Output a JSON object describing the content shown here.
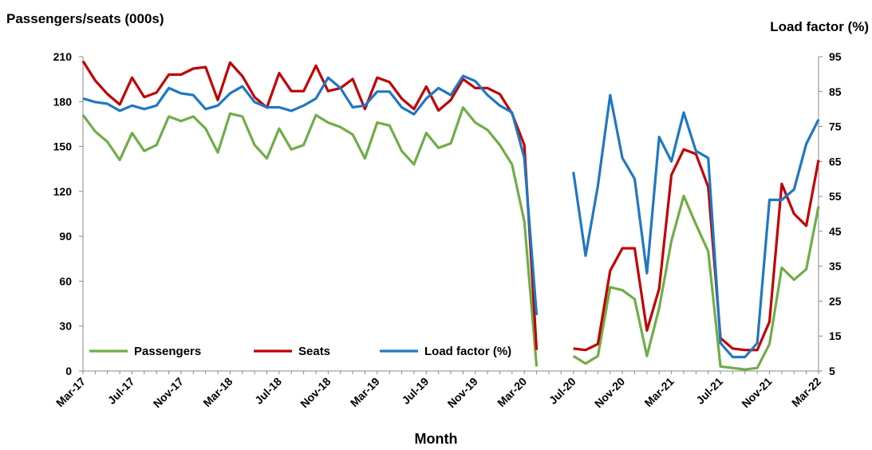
{
  "chart_data": {
    "type": "line",
    "ylabel": "Passengers/seats (000s)",
    "y2label": "Load factor (%)",
    "xlabel": "Month",
    "ylim": [
      0,
      210
    ],
    "y2lim": [
      5,
      95
    ],
    "yticks": [
      0,
      30,
      60,
      90,
      120,
      150,
      180,
      210
    ],
    "y2ticks": [
      5,
      15,
      25,
      35,
      45,
      55,
      65,
      75,
      85,
      95
    ],
    "grid": false,
    "legend_position": "bottom-left",
    "x": [
      "Mar-17",
      "Apr-17",
      "May-17",
      "Jun-17",
      "Jul-17",
      "Aug-17",
      "Sep-17",
      "Oct-17",
      "Nov-17",
      "Dec-17",
      "Jan-18",
      "Feb-18",
      "Mar-18",
      "Apr-18",
      "May-18",
      "Jun-18",
      "Jul-18",
      "Aug-18",
      "Sep-18",
      "Oct-18",
      "Nov-18",
      "Dec-18",
      "Jan-19",
      "Feb-19",
      "Mar-19",
      "Apr-19",
      "May-19",
      "Jun-19",
      "Jul-19",
      "Aug-19",
      "Sep-19",
      "Oct-19",
      "Nov-19",
      "Dec-19",
      "Jan-20",
      "Feb-20",
      "Mar-20",
      "Apr-20",
      "May-20",
      "Jun-20",
      "Jul-20",
      "Aug-20",
      "Sep-20",
      "Oct-20",
      "Nov-20",
      "Dec-20",
      "Jan-21",
      "Feb-21",
      "Mar-21",
      "Apr-21",
      "May-21",
      "Jun-21",
      "Jul-21",
      "Aug-21",
      "Sep-21",
      "Oct-21",
      "Nov-21",
      "Dec-21",
      "Jan-22",
      "Feb-22",
      "Mar-22"
    ],
    "xtick_labels": [
      "Mar-17",
      "Jul-17",
      "Nov-17",
      "Mar-18",
      "Jul-18",
      "Nov-18",
      "Mar-19",
      "Jul-19",
      "Nov-19",
      "Mar-20",
      "Jul-20",
      "Nov-20",
      "Mar-21",
      "Jul-21",
      "Nov-21",
      "Mar-22"
    ],
    "series": [
      {
        "name": "Passengers",
        "axis": "left",
        "color": "#70AD47",
        "values": [
          171,
          160,
          153,
          141,
          159,
          147,
          151,
          170,
          167,
          170,
          162,
          146,
          172,
          170,
          151,
          142,
          162,
          148,
          151,
          171,
          166,
          163,
          158,
          142,
          166,
          164,
          147,
          138,
          159,
          149,
          152,
          176,
          166,
          161,
          151,
          138,
          100,
          3,
          null,
          null,
          10,
          5,
          10,
          56,
          54,
          48,
          10,
          42,
          87,
          117,
          98,
          80,
          3,
          2,
          1,
          2,
          18,
          69,
          61,
          68,
          110
        ]
      },
      {
        "name": "Seats",
        "axis": "left",
        "color": "#C00000",
        "values": [
          207,
          194,
          185,
          178,
          196,
          183,
          186,
          198,
          198,
          202,
          203,
          181,
          206,
          197,
          183,
          176,
          199,
          187,
          187,
          204,
          187,
          189,
          195,
          175,
          196,
          193,
          182,
          175,
          190,
          174,
          181,
          195,
          189,
          189,
          185,
          172,
          151,
          14,
          null,
          null,
          15,
          14,
          18,
          67,
          82,
          82,
          27,
          55,
          131,
          148,
          145,
          123,
          22,
          15,
          14,
          14,
          33,
          125,
          105,
          97,
          141
        ]
      },
      {
        "name": "Load factor (%)",
        "axis": "right",
        "color": "#1F77C4",
        "values": [
          83,
          82,
          81.5,
          79.5,
          81,
          80,
          81,
          86,
          84.5,
          84,
          80,
          81,
          84.5,
          86.5,
          82,
          80.5,
          80.5,
          79.5,
          81,
          83,
          89,
          86,
          80.5,
          81,
          85,
          85,
          80.5,
          78.5,
          83,
          86,
          84,
          89.5,
          88,
          84,
          81,
          79,
          66,
          21,
          null,
          null,
          62,
          38,
          58,
          84,
          66,
          60,
          33,
          72,
          65,
          79,
          68,
          66,
          13,
          9,
          9,
          13,
          54,
          54,
          57,
          70,
          77
        ]
      }
    ]
  }
}
